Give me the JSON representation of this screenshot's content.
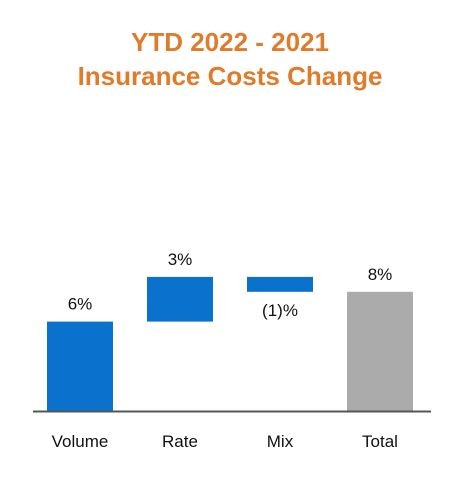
{
  "chart_data": {
    "type": "bar",
    "subtype": "waterfall",
    "title_lines": [
      "YTD 2022 - 2021",
      "Insurance Costs Change"
    ],
    "categories": [
      "Volume",
      "Rate",
      "Mix",
      "Total"
    ],
    "values": [
      6,
      3,
      -1,
      8
    ],
    "data_labels": [
      "6%",
      "3%",
      "(1)%",
      "8%"
    ],
    "bar_kinds": [
      "increase",
      "increase",
      "decrease",
      "total"
    ],
    "xlabel": "",
    "ylabel": "",
    "ylim": [
      0,
      10
    ],
    "grid": false,
    "legend": "none",
    "colors": {
      "title": "#E07B2A",
      "delta": "#0A72CD",
      "total": "#ABABAB",
      "axis": "#555555"
    }
  }
}
